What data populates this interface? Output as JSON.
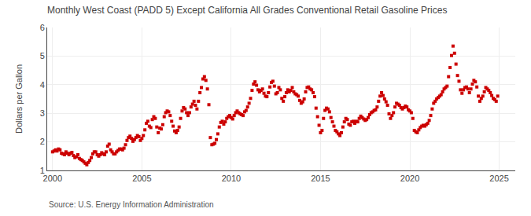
{
  "chart_data": {
    "type": "scatter",
    "title": "Monthly West Coast (PADD 5) Except California All Grades Conventional Retail Gasoline Prices",
    "ylabel": "Dollars per Gallon",
    "annotations": [
      "Source: U.S. Energy Information Administration"
    ],
    "color": "#cc0000",
    "marker": "square",
    "grid": true,
    "xlim": [
      1999.7,
      2025.9
    ],
    "ylim": [
      1.0,
      6.0
    ],
    "xticks": [
      2000,
      2005,
      2010,
      2015,
      2020,
      2025
    ],
    "yticks": [
      1,
      2,
      3,
      4,
      5,
      6
    ],
    "x": [
      2000.0,
      2000.083,
      2000.167,
      2000.25,
      2000.333,
      2000.417,
      2000.5,
      2000.583,
      2000.667,
      2000.75,
      2000.833,
      2000.917,
      2001.0,
      2001.083,
      2001.167,
      2001.25,
      2001.333,
      2001.417,
      2001.5,
      2001.583,
      2001.667,
      2001.75,
      2001.833,
      2001.917,
      2002.0,
      2002.083,
      2002.167,
      2002.25,
      2002.333,
      2002.417,
      2002.5,
      2002.583,
      2002.667,
      2002.75,
      2002.833,
      2002.917,
      2003.0,
      2003.083,
      2003.167,
      2003.25,
      2003.333,
      2003.417,
      2003.5,
      2003.583,
      2003.667,
      2003.75,
      2003.833,
      2003.917,
      2004.0,
      2004.083,
      2004.167,
      2004.25,
      2004.333,
      2004.417,
      2004.5,
      2004.583,
      2004.667,
      2004.75,
      2004.833,
      2004.917,
      2005.0,
      2005.083,
      2005.167,
      2005.25,
      2005.333,
      2005.417,
      2005.5,
      2005.583,
      2005.667,
      2005.75,
      2005.833,
      2005.917,
      2006.0,
      2006.083,
      2006.167,
      2006.25,
      2006.333,
      2006.417,
      2006.5,
      2006.583,
      2006.667,
      2006.75,
      2006.833,
      2006.917,
      2007.0,
      2007.083,
      2007.167,
      2007.25,
      2007.333,
      2007.417,
      2007.5,
      2007.583,
      2007.667,
      2007.75,
      2007.833,
      2007.917,
      2008.0,
      2008.083,
      2008.167,
      2008.25,
      2008.333,
      2008.417,
      2008.5,
      2008.583,
      2008.667,
      2008.75,
      2008.833,
      2008.917,
      2009.0,
      2009.083,
      2009.167,
      2009.25,
      2009.333,
      2009.417,
      2009.5,
      2009.583,
      2009.667,
      2009.75,
      2009.833,
      2009.917,
      2010.0,
      2010.083,
      2010.167,
      2010.25,
      2010.333,
      2010.417,
      2010.5,
      2010.583,
      2010.667,
      2010.75,
      2010.833,
      2010.917,
      2011.0,
      2011.083,
      2011.167,
      2011.25,
      2011.333,
      2011.417,
      2011.5,
      2011.583,
      2011.667,
      2011.75,
      2011.833,
      2011.917,
      2012.0,
      2012.083,
      2012.167,
      2012.25,
      2012.333,
      2012.417,
      2012.5,
      2012.583,
      2012.667,
      2012.75,
      2012.833,
      2012.917,
      2013.0,
      2013.083,
      2013.167,
      2013.25,
      2013.333,
      2013.417,
      2013.5,
      2013.583,
      2013.667,
      2013.75,
      2013.833,
      2013.917,
      2014.0,
      2014.083,
      2014.167,
      2014.25,
      2014.333,
      2014.417,
      2014.5,
      2014.583,
      2014.667,
      2014.75,
      2014.833,
      2014.917,
      2015.0,
      2015.083,
      2015.167,
      2015.25,
      2015.333,
      2015.417,
      2015.5,
      2015.583,
      2015.667,
      2015.75,
      2015.833,
      2015.917,
      2016.0,
      2016.083,
      2016.167,
      2016.25,
      2016.333,
      2016.417,
      2016.5,
      2016.583,
      2016.667,
      2016.75,
      2016.833,
      2016.917,
      2017.0,
      2017.083,
      2017.167,
      2017.25,
      2017.333,
      2017.417,
      2017.5,
      2017.583,
      2017.667,
      2017.75,
      2017.833,
      2017.917,
      2018.0,
      2018.083,
      2018.167,
      2018.25,
      2018.333,
      2018.417,
      2018.5,
      2018.583,
      2018.667,
      2018.75,
      2018.833,
      2018.917,
      2019.0,
      2019.083,
      2019.167,
      2019.25,
      2019.333,
      2019.417,
      2019.5,
      2019.583,
      2019.667,
      2019.75,
      2019.833,
      2019.917,
      2020.0,
      2020.083,
      2020.167,
      2020.25,
      2020.333,
      2020.417,
      2020.5,
      2020.583,
      2020.667,
      2020.75,
      2020.833,
      2020.917,
      2021.0,
      2021.083,
      2021.167,
      2021.25,
      2021.333,
      2021.417,
      2021.5,
      2021.583,
      2021.667,
      2021.75,
      2021.833,
      2021.917,
      2022.0,
      2022.083,
      2022.167,
      2022.25,
      2022.333,
      2022.417,
      2022.5,
      2022.583,
      2022.667,
      2022.75,
      2022.833,
      2022.917,
      2023.0,
      2023.083,
      2023.167,
      2023.25,
      2023.333,
      2023.417,
      2023.5,
      2023.583,
      2023.667,
      2023.75,
      2023.833,
      2023.917,
      2024.0,
      2024.083,
      2024.167,
      2024.25,
      2024.333,
      2024.417,
      2024.5,
      2024.583,
      2024.667,
      2024.75,
      2024.833,
      2024.917
    ],
    "values": [
      1.65,
      1.68,
      1.72,
      1.68,
      1.75,
      1.72,
      1.6,
      1.58,
      1.55,
      1.65,
      1.6,
      1.55,
      1.6,
      1.63,
      1.52,
      1.45,
      1.48,
      1.55,
      1.42,
      1.38,
      1.35,
      1.3,
      1.25,
      1.2,
      1.28,
      1.35,
      1.45,
      1.58,
      1.65,
      1.65,
      1.55,
      1.5,
      1.55,
      1.62,
      1.58,
      1.55,
      1.65,
      1.85,
      1.92,
      1.72,
      1.65,
      1.58,
      1.58,
      1.65,
      1.7,
      1.75,
      1.75,
      1.72,
      1.78,
      1.9,
      2.05,
      2.15,
      2.2,
      2.12,
      2.02,
      2.08,
      2.15,
      2.22,
      2.18,
      2.05,
      2.12,
      2.22,
      2.42,
      2.65,
      2.72,
      2.55,
      2.5,
      2.78,
      2.88,
      2.82,
      2.52,
      2.32,
      2.48,
      2.45,
      2.6,
      2.88,
      3.02,
      3.08,
      3.05,
      2.92,
      2.72,
      2.55,
      2.38,
      2.32,
      2.4,
      2.52,
      2.82,
      3.08,
      3.2,
      3.15,
      3.02,
      2.92,
      3.02,
      3.22,
      3.32,
      3.42,
      3.28,
      3.15,
      3.42,
      3.72,
      3.9,
      4.2,
      4.28,
      4.15,
      3.85,
      3.3,
      2.15,
      1.9,
      1.92,
      1.95,
      2.08,
      2.28,
      2.52,
      2.68,
      2.72,
      2.62,
      2.7,
      2.82,
      2.88,
      2.92,
      2.85,
      2.8,
      2.92,
      3.02,
      3.08,
      3.02,
      2.98,
      2.95,
      2.92,
      3.05,
      3.1,
      3.22,
      3.35,
      3.52,
      3.8,
      4.02,
      4.1,
      3.98,
      3.82,
      3.75,
      3.8,
      3.85,
      3.7,
      3.6,
      3.58,
      3.72,
      3.92,
      4.08,
      4.12,
      3.95,
      3.68,
      3.72,
      3.9,
      3.82,
      3.52,
      3.42,
      3.58,
      3.72,
      3.82,
      3.75,
      3.8,
      3.9,
      3.75,
      3.68,
      3.65,
      3.6,
      3.45,
      3.35,
      3.4,
      3.5,
      3.75,
      3.9,
      3.92,
      3.85,
      3.82,
      3.72,
      3.58,
      3.18,
      2.88,
      2.58,
      2.32,
      2.4,
      2.82,
      3.1,
      3.18,
      3.15,
      3.05,
      2.85,
      2.7,
      2.55,
      2.4,
      2.35,
      2.28,
      2.22,
      2.32,
      2.52,
      2.7,
      2.82,
      2.78,
      2.62,
      2.58,
      2.7,
      2.72,
      2.65,
      2.72,
      2.7,
      2.82,
      2.9,
      2.85,
      2.8,
      2.75,
      2.78,
      2.85,
      2.95,
      3.02,
      3.05,
      3.1,
      3.12,
      3.22,
      3.42,
      3.6,
      3.72,
      3.62,
      3.5,
      3.4,
      3.28,
      2.98,
      2.82,
      2.92,
      3.02,
      3.22,
      3.35,
      3.32,
      3.28,
      3.2,
      3.15,
      3.2,
      3.25,
      3.22,
      3.12,
      3.08,
      3.02,
      2.82,
      2.4,
      2.35,
      2.32,
      2.42,
      2.5,
      2.55,
      2.58,
      2.55,
      2.6,
      2.65,
      2.75,
      2.92,
      3.15,
      3.35,
      3.42,
      3.5,
      3.55,
      3.6,
      3.65,
      3.75,
      3.85,
      3.9,
      3.95,
      4.28,
      4.6,
      5.02,
      5.35,
      5.1,
      4.72,
      4.32,
      4.12,
      3.82,
      3.7,
      3.82,
      3.9,
      3.92,
      3.85,
      3.72,
      3.85,
      4.02,
      4.15,
      4.1,
      3.92,
      3.6,
      3.42,
      3.52,
      3.6,
      3.75,
      3.9,
      3.85,
      3.8,
      3.72,
      3.62,
      3.52,
      3.48,
      3.42,
      3.6
    ]
  }
}
